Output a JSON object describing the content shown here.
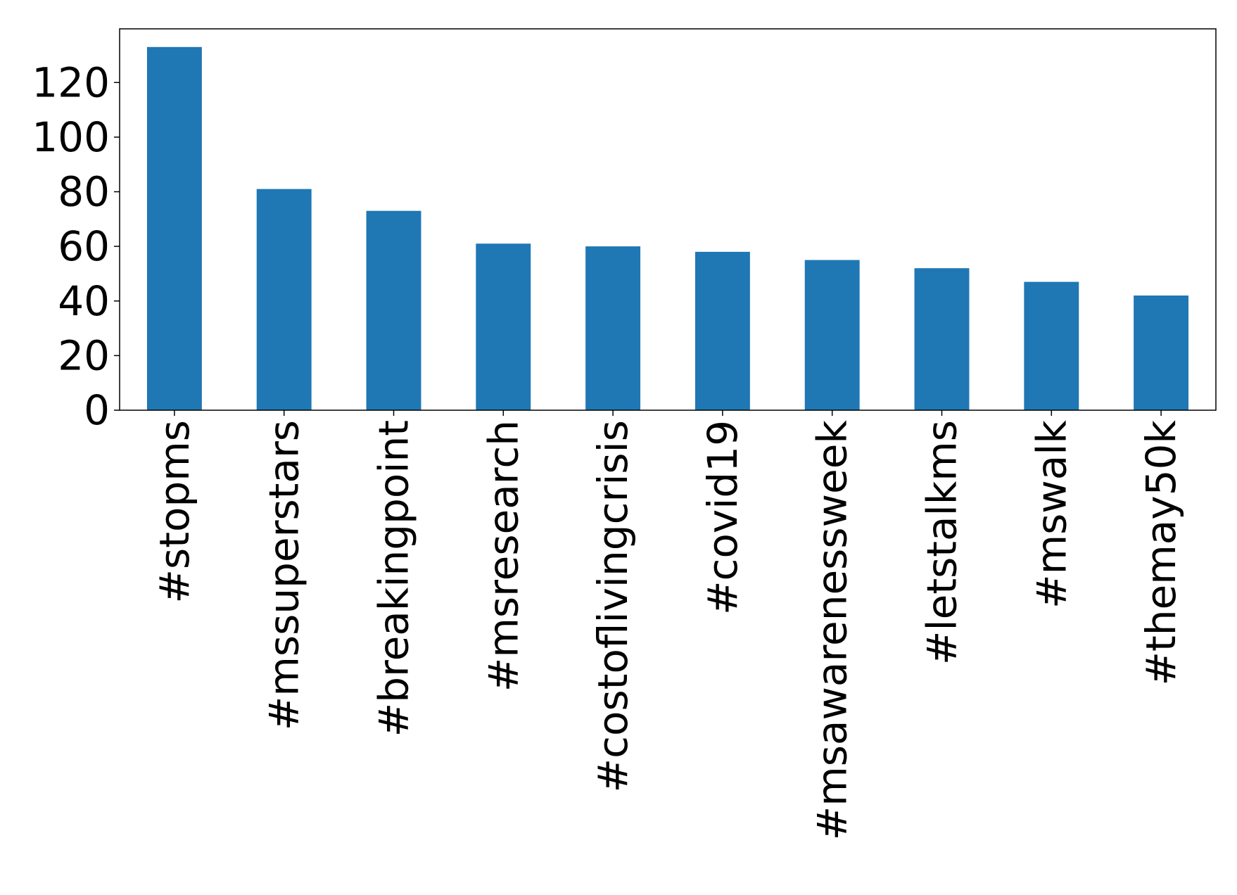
{
  "chart_data": {
    "type": "bar",
    "categories": [
      "#stopms",
      "#mssuperstars",
      "#breakingpoint",
      "#msresearch",
      "#costoflivingcrisis",
      "#covid19",
      "#msawarenessweek",
      "#letstalkms",
      "#mswalk",
      "#themay50k"
    ],
    "values": [
      133,
      81,
      73,
      61,
      60,
      58,
      55,
      52,
      47,
      42
    ],
    "color": "#1f77b4",
    "ylim": [
      0,
      139.65
    ],
    "yticks": [
      0,
      20,
      40,
      60,
      80,
      100,
      120
    ],
    "grid": false
  }
}
